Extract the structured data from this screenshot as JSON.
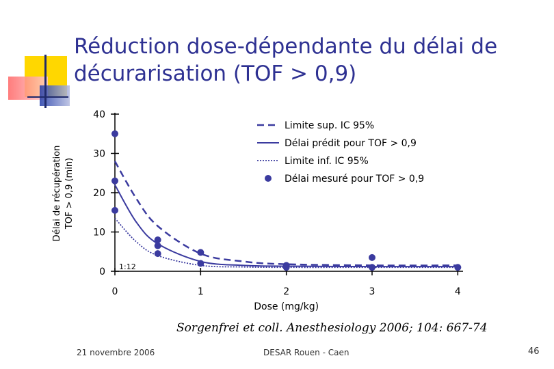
{
  "slide": {
    "title_line1": "Réduction dose-dépendante du délai de",
    "title_line2": "décurarisation (TOF > 0,9)",
    "citation": "Sorgenfrei et coll. Anesthesiology 2006; 104: 667-74",
    "footer_date": "21 novembre 2006",
    "footer_center": "DESAR Rouen - Caen",
    "page_number": "46",
    "accent_colors": {
      "title": "#2e3192",
      "deco_yellow": "#ffd700",
      "deco_red": "#ff3333",
      "deco_blue": "#1f3aa8"
    }
  },
  "chart_data": {
    "type": "scatter",
    "xlabel": "Dose (mg/kg)",
    "ylabel_line1": "Délai de récupération",
    "ylabel_line2": "TOF > 0,9 (min)",
    "xlim": [
      0,
      4.5
    ],
    "ylim": [
      0,
      40
    ],
    "x_ticks": [
      0,
      1,
      2,
      3,
      4
    ],
    "y_ticks": [
      0,
      10,
      20,
      30,
      40
    ],
    "x_tick_labels": [
      "0",
      "1",
      "2",
      "3",
      "4"
    ],
    "y_tick_labels": [
      "0",
      "10",
      "20",
      "30",
      "40"
    ],
    "inset_label": "1:12",
    "legend_position": "top-right",
    "color": "#3b3b9f",
    "series": [
      {
        "name": "Limite sup. IC 95%",
        "style": "dashed",
        "x": [
          0,
          0.25,
          0.5,
          1.0,
          1.5,
          2.0,
          3.0,
          4.0
        ],
        "y": [
          28,
          18.5,
          11.5,
          4.5,
          2.5,
          1.8,
          1.5,
          1.5
        ]
      },
      {
        "name": "Délai prédit pour TOF > 0,9",
        "style": "solid",
        "x": [
          0,
          0.25,
          0.5,
          1.0,
          1.5,
          2.0,
          3.0,
          4.0
        ],
        "y": [
          22,
          12.5,
          7.0,
          2.5,
          1.5,
          1.3,
          1.2,
          1.2
        ]
      },
      {
        "name": "Limite inf. IC 95%",
        "style": "dotted",
        "x": [
          0,
          0.25,
          0.5,
          1.0,
          1.5,
          2.0,
          3.0,
          4.0
        ],
        "y": [
          13.5,
          7.5,
          4.0,
          1.5,
          1.1,
          1.0,
          1.0,
          1.0
        ]
      },
      {
        "name": "Délai mesuré pour TOF > 0,9",
        "style": "points",
        "x": [
          0,
          0,
          0,
          0.5,
          0.5,
          0.5,
          1.0,
          1.0,
          2.0,
          2.0,
          3.0,
          3.0,
          4.0
        ],
        "y": [
          35,
          23,
          15.5,
          8,
          6.5,
          4.5,
          4.8,
          2,
          1.5,
          1,
          3.5,
          1,
          1
        ]
      }
    ]
  }
}
